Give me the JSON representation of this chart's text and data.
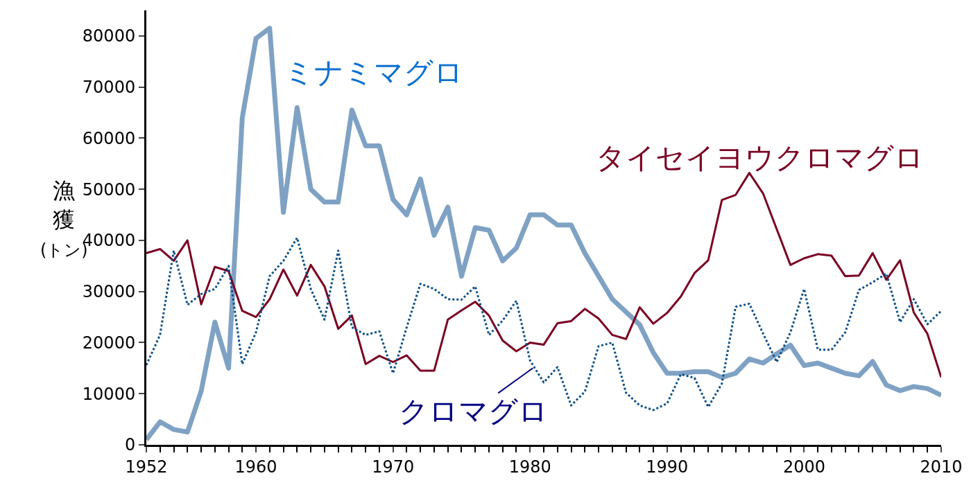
{
  "chart_data": {
    "type": "line",
    "ylabel": "漁獲(トン)",
    "x": [
      1952,
      1953,
      1954,
      1955,
      1956,
      1957,
      1958,
      1959,
      1960,
      1961,
      1962,
      1963,
      1964,
      1965,
      1966,
      1967,
      1968,
      1969,
      1970,
      1971,
      1972,
      1973,
      1974,
      1975,
      1976,
      1977,
      1978,
      1979,
      1980,
      1981,
      1982,
      1983,
      1984,
      1985,
      1986,
      1987,
      1988,
      1989,
      1990,
      1991,
      1992,
      1993,
      1994,
      1995,
      1996,
      1997,
      1998,
      1999,
      2000,
      2001,
      2002,
      2003,
      2004,
      2005,
      2006,
      2007,
      2008,
      2009,
      2010
    ],
    "series": [
      {
        "color": "#7fa2c4",
        "values": [
          1000,
          4500,
          3000,
          2500,
          10500,
          24000,
          15000,
          64000,
          79500,
          81500,
          45500,
          66000,
          50000,
          47500,
          47500,
          65500,
          58500,
          58500,
          48000,
          45000,
          52000,
          41000,
          46500,
          33000,
          42500,
          42000,
          36000,
          38500,
          45000,
          45000,
          43000,
          43000,
          37500,
          33000,
          28500,
          26000,
          23500,
          18000,
          14000,
          14000,
          14300,
          14300,
          13200,
          14000,
          16800,
          16000,
          17800,
          19500,
          15500,
          16000,
          15000,
          14000,
          13500,
          16300,
          11700,
          10600,
          11400,
          11000,
          9700
        ]
      },
      {
        "color": "#7a0022",
        "values": [
          37500,
          38300,
          36000,
          40000,
          27500,
          34800,
          34000,
          26200,
          25000,
          28500,
          34300,
          29200,
          35200,
          31000,
          22700,
          25300,
          15800,
          17400,
          16200,
          17500,
          14500,
          14500,
          24500,
          26300,
          28000,
          25300,
          20400,
          18300,
          20000,
          19600,
          23800,
          24200,
          26600,
          24700,
          21500,
          20700,
          26900,
          23700,
          25800,
          29000,
          33600,
          36100,
          47900,
          48900,
          53200,
          49200,
          42200,
          35200,
          36500,
          37300,
          37000,
          33000,
          33100,
          37500,
          32300,
          36100,
          25900,
          21700,
          13200
        ]
      },
      {
        "color": "#0b4f8a",
        "line_style": "dotted",
        "values": [
          15600,
          21500,
          38000,
          27400,
          29500,
          30500,
          35000,
          15800,
          22000,
          33000,
          36000,
          40500,
          30500,
          24500,
          38000,
          23000,
          21500,
          22200,
          14000,
          23000,
          31500,
          30500,
          28500,
          28400,
          31000,
          21500,
          24300,
          28200,
          16500,
          12200,
          15200,
          7700,
          10400,
          19300,
          20000,
          10200,
          7700,
          6800,
          8100,
          13800,
          13100,
          7400,
          12000,
          27000,
          27600,
          21800,
          16200,
          22000,
          30500,
          18600,
          18600,
          22000,
          30300,
          31800,
          33500,
          24000,
          28500,
          23600,
          26200
        ]
      }
    ],
    "annotations": [
      "ミナミマグロ",
      "タイセイヨウクロマグロ",
      {
        "text": "クロマグロ",
        "x": 1980.2,
        "y": 15000
      }
    ],
    "xlim": [
      1952,
      2010
    ],
    "xticks": [
      1952,
      1960,
      1970,
      1980,
      1990,
      2000,
      2010
    ],
    "ylim": [
      0,
      85000
    ],
    "yticks": [
      0,
      10000,
      20000,
      30000,
      40000,
      50000,
      60000,
      70000,
      80000
    ],
    "marker": "none"
  }
}
